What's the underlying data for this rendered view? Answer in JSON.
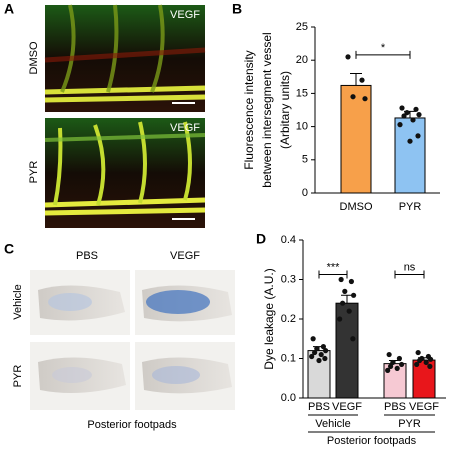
{
  "panels": {
    "A": "A",
    "B": "B",
    "C": "C",
    "D": "D"
  },
  "panel_a": {
    "image_labels": [
      "VEGF",
      "VEGF"
    ],
    "row_labels": [
      "DMSO",
      "PYR"
    ]
  },
  "panel_c": {
    "column_labels": [
      "PBS",
      "VEGF"
    ],
    "row_labels": [
      "Vehicle",
      "PYR"
    ],
    "caption": "Posterior footpads"
  },
  "chart_data": [
    {
      "type": "bar",
      "ylabel": [
        "Fluorescence intensity",
        "between intersegment vessel",
        "(Arbitary units)"
      ],
      "categories": [
        "DMSO",
        "PYR"
      ],
      "values": [
        16.2,
        11.3
      ],
      "errors": [
        1.8,
        1.0
      ],
      "points": [
        [
          20.5,
          17.0,
          14.5,
          14.2
        ],
        [
          12.8,
          12.6,
          12.1,
          11.8,
          11.6,
          11.0,
          10.3,
          8.6,
          7.8
        ]
      ],
      "colors": [
        "#f7a04a",
        "#8ec3f2"
      ],
      "ylim": [
        0,
        25
      ],
      "yticks": [
        0,
        5,
        10,
        15,
        20,
        25
      ],
      "significance": [
        {
          "label": "*",
          "between": [
            0,
            1
          ]
        }
      ]
    },
    {
      "type": "bar",
      "ylabel": [
        "Dye leakage (A.U.)"
      ],
      "categories": [
        "PBS",
        "VEGF",
        "PBS",
        "VEGF"
      ],
      "groups": [
        "Vehicle",
        "PYR"
      ],
      "xlabel": "Posterior footpads",
      "values": [
        0.12,
        0.24,
        0.087,
        0.096
      ],
      "errors": [
        0.01,
        0.02,
        0.008,
        0.006
      ],
      "points": [
        [
          0.15,
          0.13,
          0.125,
          0.12,
          0.115,
          0.11,
          0.105,
          0.1,
          0.095
        ],
        [
          0.3,
          0.295,
          0.27,
          0.26,
          0.24,
          0.22,
          0.2,
          0.15
        ],
        [
          0.11,
          0.1,
          0.09,
          0.085,
          0.08,
          0.075,
          0.07
        ],
        [
          0.115,
          0.105,
          0.1,
          0.098,
          0.095,
          0.09,
          0.085,
          0.08
        ]
      ],
      "colors": [
        "#d9d9d9",
        "#333333",
        "#f6c9d3",
        "#e8161b"
      ],
      "ylim": [
        0,
        0.4
      ],
      "yticks": [
        {
          "value": 0,
          "label": "0.0"
        },
        0.1,
        0.2,
        0.3,
        0.4
      ],
      "significance": [
        {
          "label": "***",
          "between": [
            0,
            1
          ]
        },
        {
          "label": "ns",
          "between": [
            2,
            3
          ]
        }
      ]
    }
  ]
}
